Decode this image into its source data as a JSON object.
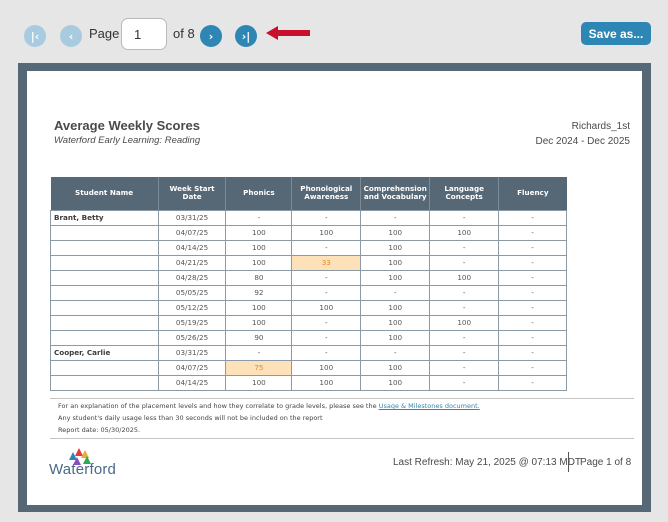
{
  "toolbar": {
    "page_label": "Page",
    "page_value": "1",
    "of_label": "of 8",
    "save_label": "Save as...",
    "first_icon": "first-page-icon",
    "prev_icon": "prev-page-icon",
    "next_icon": "next-page-icon",
    "last_icon": "last-page-icon"
  },
  "report": {
    "title": "Average Weekly Scores",
    "subtitle": "Waterford Early Learning: Reading",
    "class_name": "Richards_1st",
    "date_range": "Dec 2024 - Dec 2025",
    "columns": [
      "Student Name",
      "Week Start Date",
      "Phonics",
      "Phonological Awareness",
      "Comprehension and Vocabulary",
      "Language Concepts",
      "Fluency"
    ],
    "rows": [
      {
        "name": "Brant, Betty",
        "date": "03/31/25",
        "phonics": "-",
        "phon_awareness": "-",
        "comprehension": "-",
        "language": "-",
        "fluency": "-"
      },
      {
        "name": "",
        "date": "04/07/25",
        "phonics": "100",
        "phon_awareness": "100",
        "comprehension": "100",
        "language": "100",
        "fluency": "-"
      },
      {
        "name": "",
        "date": "04/14/25",
        "phonics": "100",
        "phon_awareness": "-",
        "comprehension": "100",
        "language": "-",
        "fluency": "-"
      },
      {
        "name": "",
        "date": "04/21/25",
        "phonics": "100",
        "phon_awareness": "33",
        "comprehension": "100",
        "language": "-",
        "fluency": "-"
      },
      {
        "name": "",
        "date": "04/28/25",
        "phonics": "80",
        "phon_awareness": "-",
        "comprehension": "100",
        "language": "100",
        "fluency": "-"
      },
      {
        "name": "",
        "date": "05/05/25",
        "phonics": "92",
        "phon_awareness": "-",
        "comprehension": "-",
        "language": "-",
        "fluency": "-"
      },
      {
        "name": "",
        "date": "05/12/25",
        "phonics": "100",
        "phon_awareness": "100",
        "comprehension": "100",
        "language": "-",
        "fluency": "-"
      },
      {
        "name": "",
        "date": "05/19/25",
        "phonics": "100",
        "phon_awareness": "-",
        "comprehension": "100",
        "language": "100",
        "fluency": "-"
      },
      {
        "name": "",
        "date": "05/26/25",
        "phonics": "90",
        "phon_awareness": "-",
        "comprehension": "100",
        "language": "-",
        "fluency": "-"
      },
      {
        "name": "Cooper, Carlie",
        "date": "03/31/25",
        "phonics": "-",
        "phon_awareness": "-",
        "comprehension": "-",
        "language": "-",
        "fluency": "-"
      },
      {
        "name": "",
        "date": "04/07/25",
        "phonics": "75",
        "phon_awareness": "100",
        "comprehension": "100",
        "language": "-",
        "fluency": "-"
      },
      {
        "name": "",
        "date": "04/14/25",
        "phonics": "100",
        "phon_awareness": "100",
        "comprehension": "100",
        "language": "-",
        "fluency": "-"
      }
    ],
    "notes": {
      "placement_text": "For an explanation of the placement levels and how they correlate to grade levels, please see the",
      "placement_link": "Usage & Milestones document.",
      "usage_note": "Any student's daily usage less than 30 seconds will not be included on the report",
      "report_date": "Report date: 05/30/2025."
    },
    "footer": {
      "logo_text": "Waterford",
      "last_refresh": "Last Refresh: May 21, 2025 @ 07:13 MDT",
      "page_of": "Page 1 of 8"
    }
  },
  "colors": {
    "accent": "#2e86b4",
    "header_bg": "#566775",
    "highlight_bg": "#fde1b8",
    "highlight_text": "#e08a2c",
    "arrow": "#c8102e"
  }
}
